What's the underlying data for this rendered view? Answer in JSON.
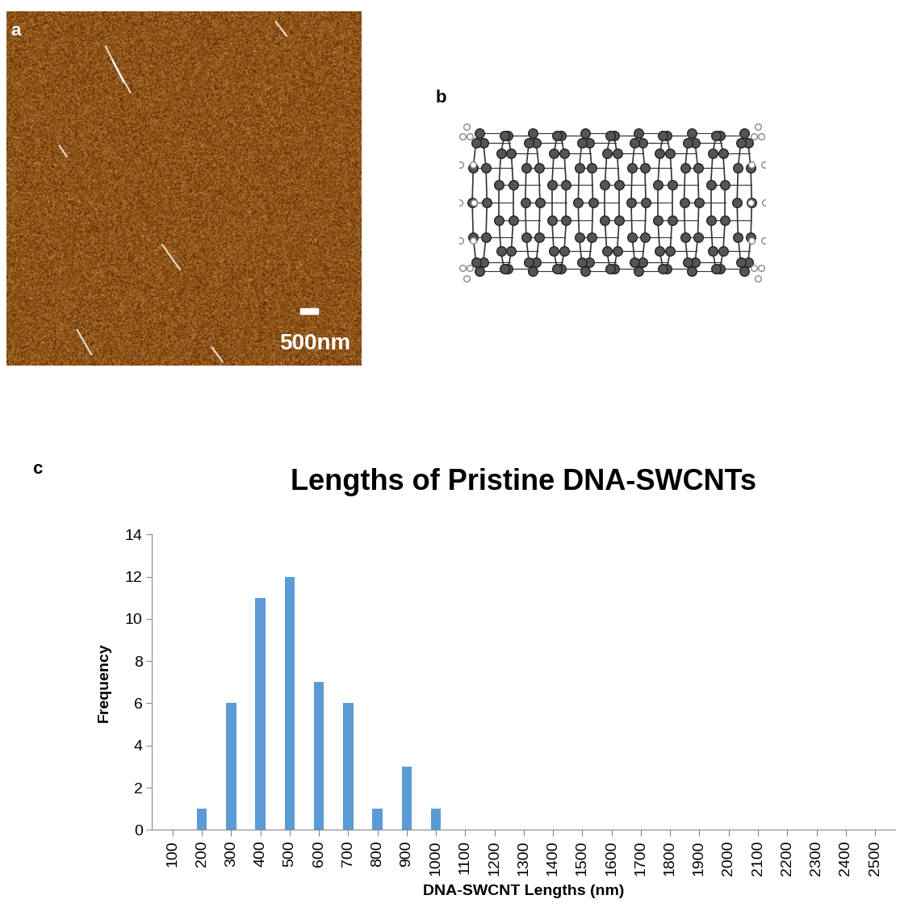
{
  "panel_labels": [
    "a",
    "b",
    "c"
  ],
  "scale_bar": {
    "label": "500nm"
  },
  "chart_data": {
    "type": "bar",
    "title": "Lengths of Pristine DNA-SWCNTs",
    "x_label": "DNA-SWCNT Lengths (nm)",
    "y_label": "Frequency",
    "categories": [
      "100",
      "200",
      "300",
      "400",
      "500",
      "600",
      "700",
      "800",
      "900",
      "1000",
      "1100",
      "1200",
      "1300",
      "1400",
      "1500",
      "1600",
      "1700",
      "1800",
      "1900",
      "2000",
      "2100",
      "2200",
      "2300",
      "2400",
      "2500"
    ],
    "values": [
      0,
      1,
      6,
      11,
      12,
      7,
      6,
      1,
      3,
      1,
      0,
      0,
      0,
      0,
      0,
      0,
      0,
      0,
      0,
      0,
      0,
      0,
      0,
      0,
      0
    ],
    "color": "#5b9bd5",
    "ylim": [
      0,
      14
    ],
    "yticks": [
      0,
      2,
      4,
      6,
      8,
      10,
      12,
      14
    ],
    "grid": false
  }
}
